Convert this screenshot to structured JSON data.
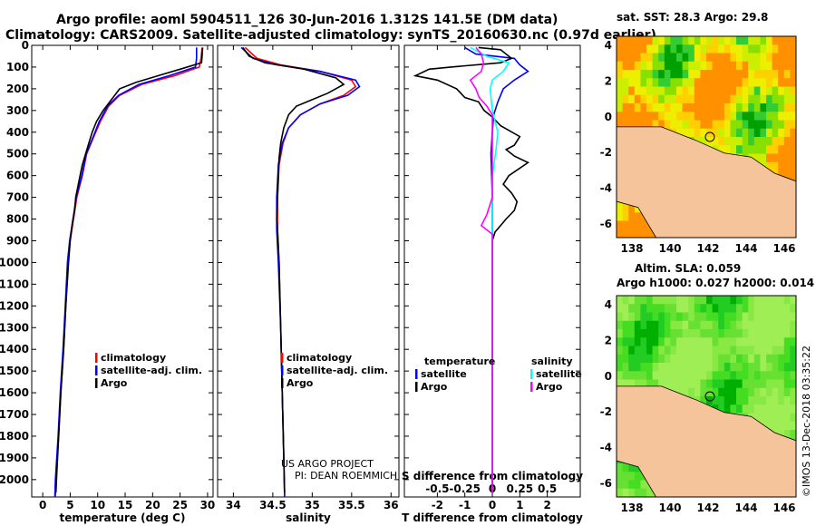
{
  "header": {
    "title_line1": "Argo profile: aoml 5904511_126 30-Jun-2016 1.312S 141.5E (DM data)",
    "title_line2": "Climatology: CARS2009. Satellite-adjusted climatology: synTS_20160630.nc (0.97d earlier)"
  },
  "colors": {
    "climatology": "#ff0000",
    "satellite": "#0000ff",
    "argo": "#000000",
    "salinity_diff": "#00ffff",
    "salinity_diff_argo": "#ff00ff",
    "land": "#f5c49a"
  },
  "depth_axis": {
    "ylim": [
      0,
      2080
    ],
    "ticks": [
      0,
      100,
      200,
      300,
      400,
      500,
      600,
      700,
      800,
      900,
      1000,
      1100,
      1200,
      1300,
      1400,
      1500,
      1600,
      1700,
      1800,
      1900,
      2000
    ],
    "tick_labels": [
      "0",
      "100",
      "200",
      "300",
      "400",
      "500",
      "600",
      "700",
      "800",
      "900",
      "1000",
      "1100",
      "1200",
      "1300",
      "1400",
      "1500",
      "1600",
      "1700",
      "1800",
      "1900",
      "2000"
    ]
  },
  "chart_data": [
    {
      "type": "line",
      "id": "temperature",
      "xlabel": "temperature (deg C)",
      "xlim": [
        -2,
        31
      ],
      "xticks": [
        0,
        5,
        10,
        15,
        20,
        25,
        30
      ],
      "xtick_labels": [
        "0",
        "5",
        "10",
        "15",
        "20",
        "25",
        "30"
      ],
      "legend": [
        "climatology",
        "satellite-adj. clim.",
        "Argo"
      ],
      "series": [
        {
          "name": "climatology",
          "color": "#ff0000",
          "points": [
            [
              29.0,
              10
            ],
            [
              28.8,
              60
            ],
            [
              28.5,
              100
            ],
            [
              24,
              140
            ],
            [
              18,
              180
            ],
            [
              14,
              230
            ],
            [
              12,
              280
            ],
            [
              10.5,
              350
            ],
            [
              9.3,
              420
            ],
            [
              8.0,
              500
            ],
            [
              7.2,
              600
            ],
            [
              6.2,
              700
            ],
            [
              5.6,
              800
            ],
            [
              5.0,
              900
            ],
            [
              4.6,
              1000
            ],
            [
              4.2,
              1200
            ],
            [
              3.8,
              1400
            ],
            [
              3.3,
              1600
            ],
            [
              2.9,
              1800
            ],
            [
              2.4,
              2000
            ],
            [
              2.3,
              2080
            ]
          ]
        },
        {
          "name": "satellite-adj. clim.",
          "color": "#0000ff",
          "points": [
            [
              28.0,
              10
            ],
            [
              28.0,
              60
            ],
            [
              27.8,
              100
            ],
            [
              23,
              140
            ],
            [
              17.5,
              180
            ],
            [
              13.8,
              230
            ],
            [
              11.8,
              280
            ],
            [
              10.3,
              350
            ],
            [
              9.2,
              420
            ],
            [
              7.9,
              500
            ],
            [
              7.1,
              600
            ],
            [
              6.1,
              700
            ],
            [
              5.5,
              800
            ],
            [
              4.9,
              900
            ],
            [
              4.5,
              1000
            ],
            [
              4.1,
              1200
            ],
            [
              3.7,
              1400
            ],
            [
              3.2,
              1600
            ],
            [
              2.8,
              1800
            ],
            [
              2.3,
              2000
            ],
            [
              2.2,
              2080
            ]
          ]
        },
        {
          "name": "Argo",
          "color": "#000000",
          "points": [
            [
              29.1,
              10
            ],
            [
              29.0,
              50
            ],
            [
              28.9,
              80
            ],
            [
              25,
              110
            ],
            [
              21,
              140
            ],
            [
              17,
              170
            ],
            [
              14,
              200
            ],
            [
              12.5,
              250
            ],
            [
              11,
              300
            ],
            [
              9.8,
              350
            ],
            [
              9.0,
              400
            ],
            [
              8.4,
              450
            ],
            [
              7.8,
              500
            ],
            [
              7.2,
              550
            ],
            [
              6.8,
              600
            ],
            [
              6.4,
              650
            ],
            [
              6.0,
              700
            ],
            [
              5.8,
              760
            ],
            [
              5.4,
              820
            ],
            [
              5.0,
              900
            ],
            [
              4.7,
              1000
            ],
            [
              4.2,
              1200
            ],
            [
              3.8,
              1400
            ],
            [
              3.3,
              1600
            ],
            [
              2.9,
              1800
            ],
            [
              2.5,
              2000
            ],
            [
              2.4,
              2060
            ]
          ]
        }
      ]
    },
    {
      "type": "line",
      "id": "salinity",
      "xlabel": "salinity",
      "xlim": [
        33.8,
        36.1
      ],
      "xticks": [
        34,
        34.5,
        35,
        35.5,
        36
      ],
      "xtick_labels": [
        "34",
        "34.5",
        "35",
        "35.5",
        "36"
      ],
      "legend": [
        "climatology",
        "satellite-adj. clim.",
        "Argo"
      ],
      "series": [
        {
          "name": "climatology",
          "color": "#ff0000",
          "points": [
            [
              34.15,
              10
            ],
            [
              34.3,
              60
            ],
            [
              34.6,
              90
            ],
            [
              35.1,
              120
            ],
            [
              35.5,
              160
            ],
            [
              35.55,
              190
            ],
            [
              35.4,
              230
            ],
            [
              35.1,
              270
            ],
            [
              34.85,
              320
            ],
            [
              34.7,
              380
            ],
            [
              34.63,
              450
            ],
            [
              34.58,
              550
            ],
            [
              34.56,
              700
            ],
            [
              34.56,
              850
            ],
            [
              34.58,
              1000
            ],
            [
              34.6,
              1300
            ],
            [
              34.62,
              1600
            ],
            [
              34.64,
              1900
            ],
            [
              34.65,
              2080
            ]
          ]
        },
        {
          "name": "satellite-adj. clim.",
          "color": "#0000ff",
          "points": [
            [
              34.1,
              10
            ],
            [
              34.25,
              60
            ],
            [
              34.55,
              90
            ],
            [
              35.1,
              120
            ],
            [
              35.55,
              160
            ],
            [
              35.6,
              190
            ],
            [
              35.45,
              230
            ],
            [
              35.1,
              270
            ],
            [
              34.85,
              320
            ],
            [
              34.7,
              380
            ],
            [
              34.62,
              450
            ],
            [
              34.57,
              550
            ],
            [
              34.55,
              700
            ],
            [
              34.55,
              850
            ],
            [
              34.57,
              1000
            ],
            [
              34.6,
              1300
            ],
            [
              34.62,
              1600
            ],
            [
              34.64,
              1900
            ],
            [
              34.65,
              2080
            ]
          ]
        },
        {
          "name": "Argo",
          "color": "#000000",
          "points": [
            [
              34.12,
              10
            ],
            [
              34.2,
              50
            ],
            [
              34.4,
              80
            ],
            [
              34.9,
              110
            ],
            [
              35.3,
              150
            ],
            [
              35.4,
              180
            ],
            [
              35.2,
              220
            ],
            [
              35.0,
              250
            ],
            [
              34.8,
              280
            ],
            [
              34.7,
              320
            ],
            [
              34.64,
              380
            ],
            [
              34.6,
              450
            ],
            [
              34.58,
              520
            ],
            [
              34.57,
              600
            ],
            [
              34.56,
              700
            ],
            [
              34.55,
              800
            ],
            [
              34.56,
              850
            ],
            [
              34.58,
              1000
            ],
            [
              34.6,
              1300
            ],
            [
              34.62,
              1600
            ],
            [
              34.64,
              1900
            ],
            [
              34.65,
              2060
            ]
          ]
        }
      ]
    },
    {
      "type": "line",
      "id": "difference",
      "xlabel": "T difference from climatology",
      "xlabel_top": "S difference from climatology",
      "xlim": [
        -3.2,
        3.2
      ],
      "xticks": [
        -2,
        -1,
        0,
        1,
        2
      ],
      "xtick_labels": [
        "-2",
        "-1",
        "0",
        "1",
        "2"
      ],
      "xticks_top": [
        -0.5,
        -0.25,
        0,
        0.25,
        0.5
      ],
      "xtick_top_labels": [
        "-0.5",
        "-0.25",
        "0",
        "0.25",
        "0.5"
      ],
      "legend_left_title": "temperature",
      "legend_right_title": "salinity",
      "legend": [
        "satellite",
        "Argo"
      ],
      "series": [
        {
          "name": "temperature satellite",
          "color": "#0000ff",
          "points": [
            [
              -1.0,
              10
            ],
            [
              -0.6,
              40
            ],
            [
              0.8,
              60
            ],
            [
              1.0,
              90
            ],
            [
              1.3,
              120
            ],
            [
              0.8,
              160
            ],
            [
              0.4,
              200
            ],
            [
              0.2,
              260
            ],
            [
              0.05,
              320
            ],
            [
              0.0,
              400
            ],
            [
              -0.05,
              500
            ],
            [
              0.0,
              700
            ],
            [
              0.0,
              1000
            ],
            [
              0.0,
              1500
            ],
            [
              0.0,
              2000
            ]
          ]
        },
        {
          "name": "temperature Argo",
          "color": "#000000",
          "points": [
            [
              -0.5,
              10
            ],
            [
              0.3,
              20
            ],
            [
              0.5,
              40
            ],
            [
              0.7,
              60
            ],
            [
              0.3,
              80
            ],
            [
              -1.5,
              100
            ],
            [
              -2.3,
              110
            ],
            [
              -2.8,
              140
            ],
            [
              -2.0,
              160
            ],
            [
              -1.3,
              200
            ],
            [
              -1.0,
              240
            ],
            [
              -0.5,
              260
            ],
            [
              -0.3,
              300
            ],
            [
              0.0,
              330
            ],
            [
              0.3,
              370
            ],
            [
              1.0,
              420
            ],
            [
              0.8,
              460
            ],
            [
              0.5,
              480
            ],
            [
              0.8,
              510
            ],
            [
              1.3,
              540
            ],
            [
              0.6,
              600
            ],
            [
              0.4,
              640
            ],
            [
              0.7,
              680
            ],
            [
              0.9,
              720
            ],
            [
              0.8,
              760
            ],
            [
              0.5,
              800
            ],
            [
              0.1,
              860
            ],
            [
              0.0,
              900
            ],
            [
              0.0,
              1000
            ],
            [
              0.0,
              1500
            ],
            [
              0.0,
              2060
            ]
          ]
        },
        {
          "name": "salinity satellite",
          "color": "#00ffff",
          "points": [
            [
              -0.2,
              10
            ],
            [
              -0.05,
              50
            ],
            [
              0.15,
              80
            ],
            [
              0.1,
              120
            ],
            [
              0.0,
              160
            ],
            [
              -0.02,
              200
            ],
            [
              0.0,
              300
            ],
            [
              0.05,
              400
            ],
            [
              0.03,
              500
            ],
            [
              0.0,
              600
            ],
            [
              0.0,
              800
            ],
            [
              0.0,
              1000
            ],
            [
              0.0,
              1500
            ],
            [
              0.0,
              2000
            ]
          ]
        },
        {
          "name": "salinity Argo",
          "color": "#ff00ff",
          "points": [
            [
              -0.15,
              10
            ],
            [
              -0.1,
              40
            ],
            [
              -0.08,
              80
            ],
            [
              -0.1,
              120
            ],
            [
              -0.2,
              160
            ],
            [
              -0.15,
              200
            ],
            [
              -0.12,
              240
            ],
            [
              -0.05,
              280
            ],
            [
              0.0,
              320
            ],
            [
              0.0,
              400
            ],
            [
              0.0,
              700
            ],
            [
              -0.05,
              780
            ],
            [
              -0.1,
              830
            ],
            [
              0.0,
              870
            ],
            [
              0.0,
              1000
            ],
            [
              0.0,
              1500
            ],
            [
              0.0,
              2060
            ]
          ]
        }
      ]
    }
  ],
  "map_sst": {
    "title": "sat. SST: 28.3 Argo: 29.8",
    "xticks": [
      "138",
      "140",
      "142",
      "144",
      "146"
    ],
    "yticks": [
      "4",
      "2",
      "0",
      "-2",
      "-4",
      "-6"
    ]
  },
  "map_sla": {
    "title_line1": "Altim. SLA: 0.059",
    "title_line2": "Argo h1000: 0.027 h2000: 0.014",
    "xticks": [
      "138",
      "140",
      "142",
      "144",
      "146"
    ],
    "yticks": [
      "4",
      "2",
      "0",
      "-2",
      "-4",
      "-6"
    ]
  },
  "annotations": {
    "project": "US ARGO PROJECT",
    "pi": "PI: DEAN ROEMMICH",
    "stamp": "©IMOS 13-Dec-2018 03:35:22"
  }
}
